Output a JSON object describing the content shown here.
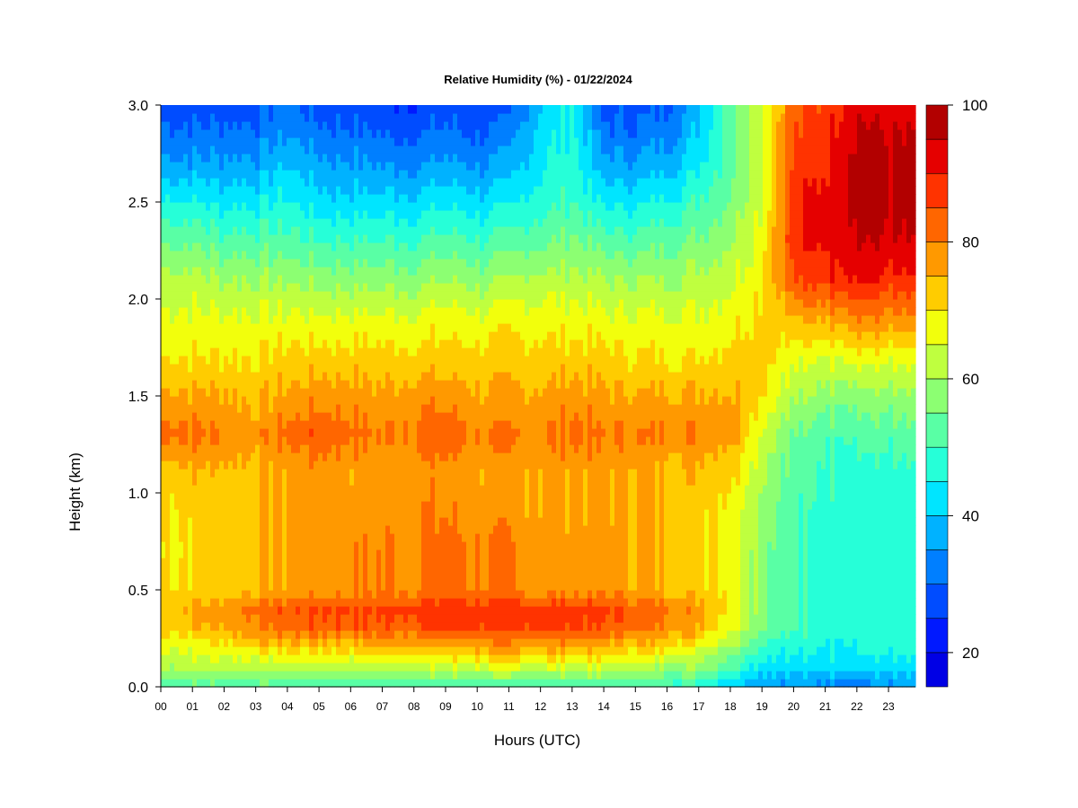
{
  "chart_data": {
    "type": "heatmap",
    "title": "Relative Humidity (%) - 01/22/2024",
    "xlabel": "Hours (UTC)",
    "ylabel": "Height (km)",
    "x_ticks": [
      "00",
      "01",
      "02",
      "03",
      "04",
      "05",
      "06",
      "07",
      "08",
      "09",
      "10",
      "11",
      "12",
      "13",
      "14",
      "15",
      "16",
      "17",
      "18",
      "19",
      "20",
      "21",
      "22",
      "23"
    ],
    "x_range": [
      0,
      23.85
    ],
    "y_ticks": [
      "0.0",
      "0.5",
      "1.0",
      "1.5",
      "2.0",
      "2.5",
      "3.0"
    ],
    "y_range": [
      0,
      3.0
    ],
    "z_unit": "%",
    "colorbar": {
      "range": [
        15,
        100
      ],
      "ticks": [
        "20",
        "40",
        "60",
        "80",
        "100"
      ],
      "levels": [
        15,
        20,
        25,
        30,
        35,
        40,
        45,
        50,
        55,
        60,
        65,
        70,
        75,
        80,
        85,
        90,
        95,
        100
      ],
      "colors": [
        "#00007f",
        "#0000b2",
        "#0000e5",
        "#0019ff",
        "#004cff",
        "#007fff",
        "#00b2ff",
        "#00e5ff",
        "#26ffd8",
        "#59ffa5",
        "#8cff72",
        "#bfff3f",
        "#f2ff0c",
        "#ffcc00",
        "#ff9900",
        "#ff6600",
        "#ff3300",
        "#e50000",
        "#b20000",
        "#7f0000"
      ]
    },
    "heights_km": [
      0.0,
      0.1,
      0.2,
      0.3,
      0.4,
      0.5,
      0.7,
      0.9,
      1.1,
      1.3,
      1.5,
      1.7,
      1.9,
      2.1,
      2.3,
      2.5,
      2.7,
      2.9,
      3.0
    ],
    "profiles": [
      {
        "hour": 0,
        "rh": [
          52,
          60,
          66,
          72,
          74,
          70,
          70,
          70,
          72,
          82,
          76,
          70,
          66,
          62,
          54,
          46,
          36,
          30,
          28
        ]
      },
      {
        "hour": 1,
        "rh": [
          52,
          62,
          66,
          74,
          76,
          72,
          70,
          72,
          74,
          82,
          76,
          70,
          66,
          62,
          54,
          46,
          36,
          30,
          28
        ]
      },
      {
        "hour": 2,
        "rh": [
          52,
          62,
          68,
          76,
          78,
          72,
          72,
          72,
          74,
          80,
          76,
          70,
          66,
          60,
          52,
          44,
          36,
          30,
          28
        ]
      },
      {
        "hour": 3,
        "rh": [
          52,
          62,
          70,
          80,
          82,
          74,
          74,
          74,
          74,
          78,
          74,
          70,
          66,
          60,
          52,
          44,
          36,
          30,
          28
        ]
      },
      {
        "hour": 4,
        "rh": [
          50,
          62,
          72,
          82,
          84,
          76,
          76,
          76,
          76,
          82,
          76,
          72,
          66,
          60,
          52,
          46,
          40,
          34,
          32
        ]
      },
      {
        "hour": 5,
        "rh": [
          50,
          62,
          72,
          84,
          86,
          78,
          78,
          78,
          78,
          84,
          78,
          72,
          66,
          58,
          50,
          42,
          36,
          30,
          28
        ]
      },
      {
        "hour": 6,
        "rh": [
          50,
          62,
          72,
          84,
          86,
          78,
          78,
          78,
          76,
          82,
          78,
          72,
          66,
          58,
          50,
          42,
          36,
          30,
          28
        ]
      },
      {
        "hour": 7,
        "rh": [
          50,
          62,
          74,
          84,
          86,
          80,
          80,
          78,
          76,
          80,
          76,
          72,
          66,
          58,
          50,
          42,
          34,
          28,
          26
        ]
      },
      {
        "hour": 8,
        "rh": [
          50,
          62,
          74,
          84,
          88,
          80,
          80,
          80,
          78,
          82,
          78,
          72,
          66,
          58,
          50,
          42,
          34,
          28,
          26
        ]
      },
      {
        "hour": 9,
        "rh": [
          50,
          64,
          74,
          86,
          88,
          82,
          82,
          80,
          78,
          84,
          78,
          72,
          68,
          60,
          52,
          44,
          36,
          30,
          28
        ]
      },
      {
        "hour": 10,
        "rh": [
          50,
          64,
          76,
          86,
          88,
          80,
          80,
          78,
          76,
          80,
          76,
          72,
          66,
          58,
          50,
          42,
          34,
          28,
          26
        ]
      },
      {
        "hour": 11,
        "rh": [
          50,
          64,
          76,
          86,
          88,
          80,
          80,
          78,
          76,
          80,
          76,
          72,
          68,
          60,
          52,
          44,
          36,
          30,
          28
        ]
      },
      {
        "hour": 12,
        "rh": [
          50,
          64,
          76,
          86,
          88,
          78,
          78,
          76,
          76,
          80,
          76,
          72,
          68,
          62,
          54,
          48,
          44,
          42,
          40
        ]
      },
      {
        "hour": 13,
        "rh": [
          50,
          64,
          76,
          86,
          88,
          78,
          78,
          76,
          76,
          82,
          78,
          72,
          68,
          62,
          56,
          50,
          48,
          46,
          46
        ]
      },
      {
        "hour": 14,
        "rh": [
          50,
          64,
          74,
          84,
          86,
          78,
          78,
          76,
          76,
          80,
          76,
          72,
          66,
          60,
          52,
          44,
          36,
          30,
          28
        ]
      },
      {
        "hour": 15,
        "rh": [
          50,
          62,
          72,
          82,
          84,
          76,
          76,
          76,
          76,
          80,
          76,
          70,
          66,
          60,
          52,
          44,
          36,
          30,
          28
        ]
      },
      {
        "hour": 16,
        "rh": [
          50,
          60,
          70,
          80,
          82,
          74,
          74,
          74,
          74,
          80,
          76,
          70,
          66,
          60,
          54,
          46,
          38,
          32,
          30
        ]
      },
      {
        "hour": 17,
        "rh": [
          48,
          58,
          66,
          76,
          78,
          72,
          72,
          72,
          74,
          80,
          76,
          70,
          66,
          62,
          56,
          50,
          44,
          40,
          38
        ]
      },
      {
        "hour": 18,
        "rh": [
          42,
          52,
          60,
          68,
          70,
          70,
          70,
          70,
          72,
          78,
          76,
          72,
          68,
          64,
          60,
          56,
          54,
          54,
          54
        ]
      },
      {
        "hour": 19,
        "rh": [
          36,
          44,
          50,
          56,
          58,
          58,
          58,
          60,
          62,
          66,
          72,
          74,
          72,
          70,
          68,
          66,
          66,
          66,
          66
        ]
      },
      {
        "hour": 20,
        "rh": [
          34,
          42,
          46,
          50,
          50,
          50,
          50,
          50,
          52,
          54,
          60,
          66,
          74,
          84,
          88,
          88,
          86,
          84,
          82
        ]
      },
      {
        "hour": 21,
        "rh": [
          34,
          42,
          46,
          48,
          48,
          48,
          48,
          48,
          50,
          52,
          58,
          66,
          76,
          88,
          92,
          92,
          90,
          88,
          86
        ]
      },
      {
        "hour": 22,
        "rh": [
          32,
          42,
          46,
          48,
          48,
          48,
          48,
          48,
          48,
          52,
          58,
          68,
          80,
          92,
          96,
          98,
          98,
          96,
          94
        ]
      },
      {
        "hour": 23,
        "rh": [
          34,
          42,
          46,
          48,
          48,
          48,
          48,
          48,
          48,
          52,
          58,
          66,
          78,
          88,
          94,
          96,
          96,
          94,
          92
        ]
      }
    ]
  }
}
